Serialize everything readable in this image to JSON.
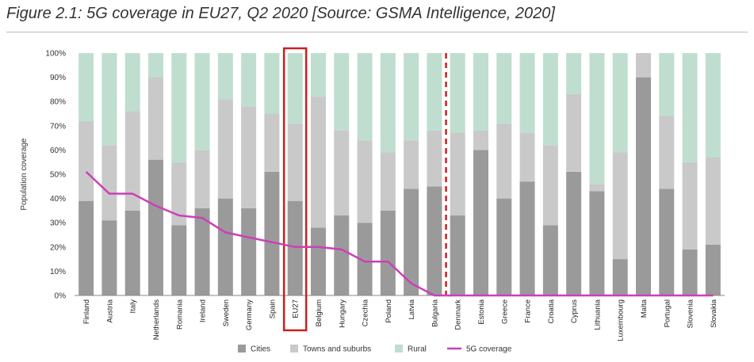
{
  "title": "Figure 2.1: 5G coverage in EU27, Q2 2020 [Source: GSMA Intelligence, 2020]",
  "chart_data": {
    "type": "bar",
    "stacked": true,
    "ylabel": "Population coverage",
    "ylim": [
      0,
      100
    ],
    "yticks": [
      "0%",
      "10%",
      "20%",
      "30%",
      "40%",
      "50%",
      "60%",
      "70%",
      "80%",
      "90%",
      "100%"
    ],
    "categories": [
      "Finland",
      "Austria",
      "Italy",
      "Netherlands",
      "Romania",
      "Ireland",
      "Sweden",
      "Germany",
      "Spain",
      "EU27",
      "Belgium",
      "Hungary",
      "Czechia",
      "Poland",
      "Latvia",
      "Bulgaria",
      "Denmark",
      "Estonia",
      "Greece",
      "France",
      "Croatia",
      "Cyprus",
      "Lithuania",
      "Luxembourg",
      "Malta",
      "Portugal",
      "Slovenia",
      "Slovakia"
    ],
    "highlight_category": "EU27",
    "divider_after": "Bulgaria",
    "series": [
      {
        "name": "Cities",
        "color": "#9a9a9a",
        "values": [
          39,
          31,
          35,
          56,
          29,
          36,
          40,
          36,
          51,
          39,
          28,
          33,
          30,
          35,
          44,
          45,
          33,
          60,
          40,
          47,
          29,
          51,
          43,
          15,
          90,
          44,
          19,
          21
        ]
      },
      {
        "name": "Towns and suburbs",
        "color": "#c9c9c9",
        "values": [
          33,
          31,
          41,
          34,
          26,
          24,
          41,
          42,
          24,
          32,
          54,
          35,
          34,
          24,
          20,
          23,
          34,
          8,
          31,
          20,
          33,
          32,
          3,
          44,
          10,
          30,
          36,
          36
        ]
      },
      {
        "name": "Rural",
        "color": "#bfdecf",
        "values": [
          28,
          38,
          24,
          10,
          45,
          40,
          19,
          22,
          25,
          29,
          18,
          32,
          36,
          41,
          36,
          32,
          33,
          32,
          29,
          33,
          38,
          17,
          54,
          41,
          0,
          26,
          45,
          43
        ]
      }
    ],
    "line": {
      "name": "5G coverage",
      "color": "#cc3fb8",
      "values": [
        51,
        42,
        42,
        37,
        33,
        32,
        26,
        24,
        22,
        20,
        20,
        19,
        14,
        14,
        5,
        0,
        0,
        0,
        0,
        0,
        0,
        0,
        0,
        0,
        0,
        0,
        0,
        0
      ]
    },
    "legend": [
      "Cities",
      "Towns and suburbs",
      "Rural",
      "5G coverage"
    ],
    "legend_position": "bottom"
  }
}
